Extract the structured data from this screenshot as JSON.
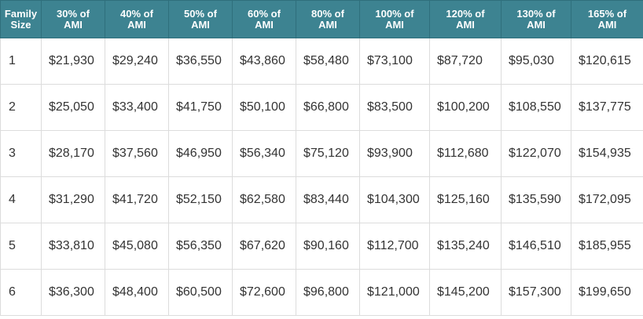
{
  "table": {
    "headers": [
      [
        "Family",
        "Size"
      ],
      [
        "30% of",
        "AMI"
      ],
      [
        "40% of",
        "AMI"
      ],
      [
        "50% of",
        "AMI"
      ],
      [
        "60% of",
        "AMI"
      ],
      [
        "80% of",
        "AMI"
      ],
      [
        "100% of",
        "AMI"
      ],
      [
        "120% of",
        "AMI"
      ],
      [
        "130% of",
        "AMI"
      ],
      [
        "165% of",
        "AMI"
      ]
    ],
    "rows": [
      [
        "1",
        "$21,930",
        "$29,240",
        "$36,550",
        "$43,860",
        "$58,480",
        "$73,100",
        "$87,720",
        "$95,030",
        "$120,615"
      ],
      [
        "2",
        "$25,050",
        "$33,400",
        "$41,750",
        "$50,100",
        "$66,800",
        "$83,500",
        "$100,200",
        "$108,550",
        "$137,775"
      ],
      [
        "3",
        "$28,170",
        "$37,560",
        "$46,950",
        "$56,340",
        "$75,120",
        "$93,900",
        "$112,680",
        "$122,070",
        "$154,935"
      ],
      [
        "4",
        "$31,290",
        "$41,720",
        "$52,150",
        "$62,580",
        "$83,440",
        "$104,300",
        "$125,160",
        "$135,590",
        "$172,095"
      ],
      [
        "5",
        "$33,810",
        "$45,080",
        "$56,350",
        "$67,620",
        "$90,160",
        "$112,700",
        "$135,240",
        "$146,510",
        "$185,955"
      ],
      [
        "6",
        "$36,300",
        "$48,400",
        "$60,500",
        "$72,600",
        "$96,800",
        "$121,000",
        "$145,200",
        "$157,300",
        "$199,650"
      ]
    ]
  },
  "colors": {
    "header_bg": "#3d8391",
    "header_text": "#ffffff",
    "cell_text": "#333333",
    "grid": "#dcdcdc"
  }
}
